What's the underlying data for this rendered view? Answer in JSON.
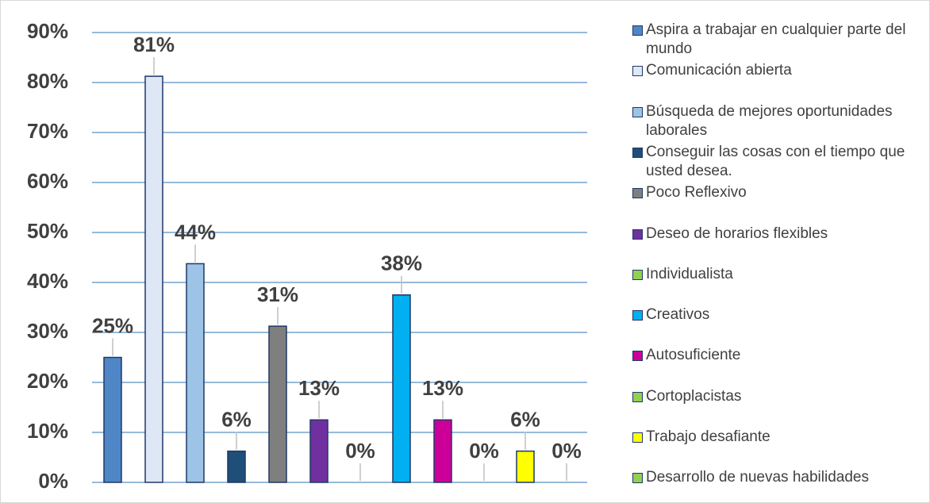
{
  "chart_data": {
    "type": "bar",
    "ylim": [
      0,
      90
    ],
    "yticks": [
      {
        "value": 0,
        "label": "0%"
      },
      {
        "value": 10,
        "label": "10%"
      },
      {
        "value": 20,
        "label": "20%"
      },
      {
        "value": 30,
        "label": "30%"
      },
      {
        "value": 40,
        "label": "40%"
      },
      {
        "value": 50,
        "label": "50%"
      },
      {
        "value": 60,
        "label": "60%"
      },
      {
        "value": 70,
        "label": "70%"
      },
      {
        "value": 80,
        "label": "80%"
      },
      {
        "value": 90,
        "label": "90%"
      }
    ],
    "grid": true,
    "legend": "right",
    "series": [
      {
        "name": "Aspira a trabajar en cualquier parte del mundo",
        "color": "#4f86c6",
        "values": [
          25
        ],
        "value_labels": [
          "25%"
        ]
      },
      {
        "name": "Comunicación abierta",
        "color": "#dde7f5",
        "values": [
          81.25
        ],
        "value_labels": [
          "81%"
        ]
      },
      {
        "name": "Búsqueda de mejores oportunidades laborales",
        "color": "#9dc3e6",
        "values": [
          43.75
        ],
        "value_labels": [
          "44%"
        ]
      },
      {
        "name": "Conseguir las cosas con el tiempo que usted desea.",
        "color": "#1f4e79",
        "values": [
          6.25
        ],
        "value_labels": [
          "6%"
        ]
      },
      {
        "name": "Poco Reflexivo",
        "color": "#7f7f7f",
        "values": [
          31.25
        ],
        "value_labels": [
          "31%"
        ]
      },
      {
        "name": "Deseo de horarios flexibles",
        "color": "#7030a0",
        "values": [
          12.5
        ],
        "value_labels": [
          "13%"
        ]
      },
      {
        "name": "Individualista",
        "color": "#92d050",
        "values": [
          0
        ],
        "value_labels": [
          "0%"
        ]
      },
      {
        "name": "Creativos",
        "color": "#00b0f0",
        "values": [
          37.5
        ],
        "value_labels": [
          "38%"
        ]
      },
      {
        "name": "Autosuficiente",
        "color": "#cc0099",
        "values": [
          12.5
        ],
        "value_labels": [
          "13%"
        ]
      },
      {
        "name": "Cortoplacistas",
        "color": "#92d050",
        "values": [
          0
        ],
        "value_labels": [
          "0%"
        ]
      },
      {
        "name": "Trabajo desafiante",
        "color": "#ffff00",
        "values": [
          6.25
        ],
        "value_labels": [
          "6%"
        ]
      },
      {
        "name": "Desarrollo de nuevas habilidades",
        "color": "#92d050",
        "values": [
          0
        ],
        "value_labels": [
          "0%"
        ]
      }
    ]
  }
}
